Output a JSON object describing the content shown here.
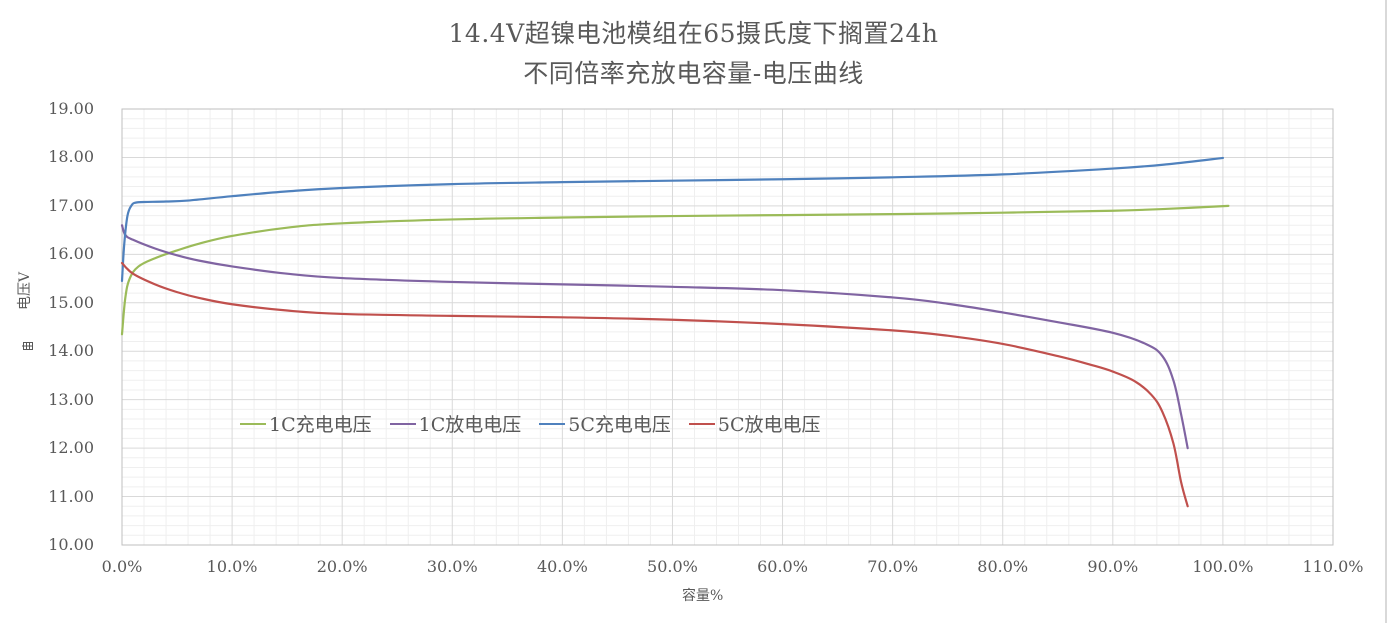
{
  "title": {
    "line1": "14.4V超镍电池模组在65摄氏度下搁置24h",
    "line2": "不同倍率充放电容量-电压曲线"
  },
  "axes": {
    "y": {
      "label": "电压V",
      "ticks": [
        "19.00",
        "18.00",
        "17.00",
        "16.00",
        "15.00",
        "14.00",
        "13.00",
        "12.00",
        "11.00",
        "10.00"
      ]
    },
    "x": {
      "label": "容量%",
      "ticks": [
        "0.0%",
        "10.0%",
        "20.0%",
        "30.0%",
        "40.0%",
        "50.0%",
        "60.0%",
        "70.0%",
        "80.0%",
        "90.0%",
        "100.0%",
        "110.0%"
      ]
    }
  },
  "legend": [
    {
      "label": "1C充电电压",
      "color": "#9bbb59"
    },
    {
      "label": "1C放电电压",
      "color": "#8064a2"
    },
    {
      "label": "5C充电电压",
      "color": "#4f81bd"
    },
    {
      "label": "5C放电电压",
      "color": "#c0504d"
    }
  ],
  "chart_data": {
    "type": "line",
    "title": "14.4V超镍电池模组在65摄氏度下搁置24h 不同倍率充放电容量-电压曲线",
    "xlabel": "容量%",
    "ylabel": "电压V",
    "xlim": [
      0,
      110
    ],
    "ylim": [
      10,
      19
    ],
    "x_major_step": 10,
    "y_major_step": 1,
    "grid": true,
    "legend_position": "inside-lower-left",
    "series": [
      {
        "name": "1C充电电压",
        "color": "#9bbb59",
        "x": [
          0,
          0.3,
          0.7,
          1.5,
          3,
          5,
          7,
          10,
          15,
          20,
          30,
          40,
          50,
          60,
          70,
          80,
          90,
          95,
          100.5
        ],
        "y": [
          14.35,
          15.1,
          15.5,
          15.75,
          15.92,
          16.08,
          16.22,
          16.38,
          16.55,
          16.64,
          16.72,
          16.76,
          16.79,
          16.81,
          16.83,
          16.86,
          16.9,
          16.94,
          17.0
        ]
      },
      {
        "name": "1C放电电压",
        "color": "#8064a2",
        "x": [
          0,
          0.3,
          1,
          3,
          5,
          7,
          10,
          15,
          20,
          30,
          40,
          50,
          60,
          70,
          75,
          80,
          85,
          90,
          93,
          94.5,
          95.5,
          96.2,
          96.8
        ],
        "y": [
          16.6,
          16.4,
          16.3,
          16.12,
          15.98,
          15.87,
          15.75,
          15.6,
          15.51,
          15.43,
          15.38,
          15.33,
          15.26,
          15.11,
          14.98,
          14.8,
          14.6,
          14.38,
          14.15,
          13.9,
          13.4,
          12.7,
          12.0
        ]
      },
      {
        "name": "5C充电电压",
        "color": "#4f81bd",
        "x": [
          0,
          0.2,
          0.5,
          0.9,
          1.3,
          2,
          4,
          6,
          10,
          15,
          20,
          30,
          40,
          50,
          60,
          70,
          80,
          90,
          95,
          100
        ],
        "y": [
          15.45,
          16.2,
          16.8,
          17.02,
          17.07,
          17.08,
          17.09,
          17.11,
          17.2,
          17.3,
          17.37,
          17.45,
          17.49,
          17.52,
          17.55,
          17.59,
          17.65,
          17.77,
          17.86,
          17.99
        ]
      },
      {
        "name": "5C放电电压",
        "color": "#c0504d",
        "x": [
          0,
          1,
          3,
          5,
          7,
          10,
          15,
          20,
          30,
          40,
          50,
          60,
          70,
          75,
          80,
          85,
          88,
          90,
          92,
          93.5,
          94.5,
          95.5,
          96.2,
          96.8
        ],
        "y": [
          15.82,
          15.6,
          15.38,
          15.22,
          15.1,
          14.97,
          14.84,
          14.77,
          14.73,
          14.7,
          14.65,
          14.56,
          14.43,
          14.32,
          14.15,
          13.9,
          13.72,
          13.58,
          13.38,
          13.1,
          12.75,
          12.1,
          11.3,
          10.8
        ]
      }
    ]
  }
}
